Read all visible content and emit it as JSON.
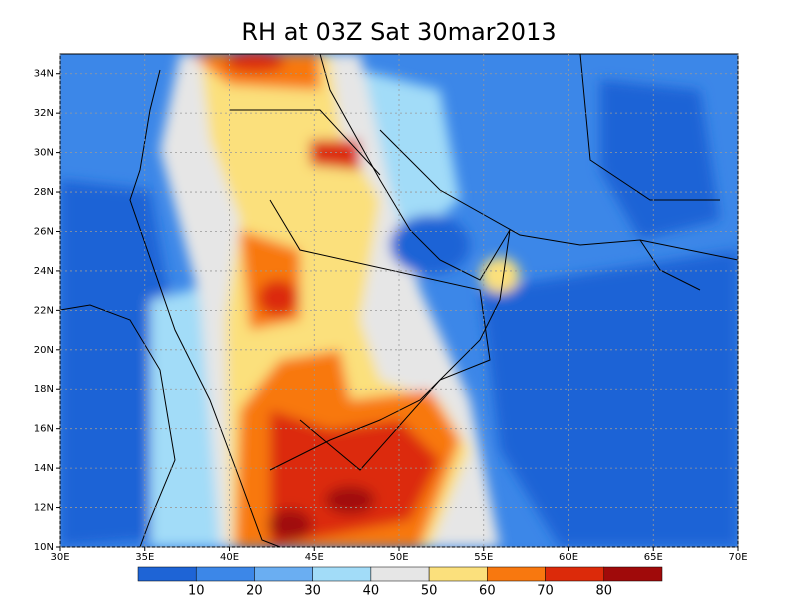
{
  "map": {
    "title": "RH at 03Z Sat 30mar2013",
    "xlim": [
      30,
      70
    ],
    "ylim": [
      10,
      35
    ],
    "xticks": [
      {
        "value": 30,
        "label": "30E"
      },
      {
        "value": 35,
        "label": "35E"
      },
      {
        "value": 40,
        "label": "40E"
      },
      {
        "value": 45,
        "label": "45E"
      },
      {
        "value": 50,
        "label": "50E"
      },
      {
        "value": 55,
        "label": "55E"
      },
      {
        "value": 60,
        "label": "60E"
      },
      {
        "value": 65,
        "label": "65E"
      },
      {
        "value": 70,
        "label": "70E"
      }
    ],
    "yticks": [
      {
        "value": 10,
        "label": "10N"
      },
      {
        "value": 12,
        "label": "12N"
      },
      {
        "value": 14,
        "label": "14N"
      },
      {
        "value": 16,
        "label": "16N"
      },
      {
        "value": 18,
        "label": "18N"
      },
      {
        "value": 20,
        "label": "20N"
      },
      {
        "value": 22,
        "label": "22N"
      },
      {
        "value": 24,
        "label": "24N"
      },
      {
        "value": 26,
        "label": "26N"
      },
      {
        "value": 28,
        "label": "28N"
      },
      {
        "value": 30,
        "label": "30N"
      },
      {
        "value": 32,
        "label": "32N"
      },
      {
        "value": 34,
        "label": "34N"
      }
    ],
    "grid": true,
    "colorbar": {
      "colors": [
        "#1e64d6",
        "#3c87e8",
        "#6aaef2",
        "#a2dcf8",
        "#e6e6e6",
        "#fbe07c",
        "#f8780f",
        "#dc2a0a",
        "#a00a0a"
      ],
      "levels": [
        10,
        20,
        30,
        40,
        50,
        60,
        70,
        80
      ]
    }
  }
}
